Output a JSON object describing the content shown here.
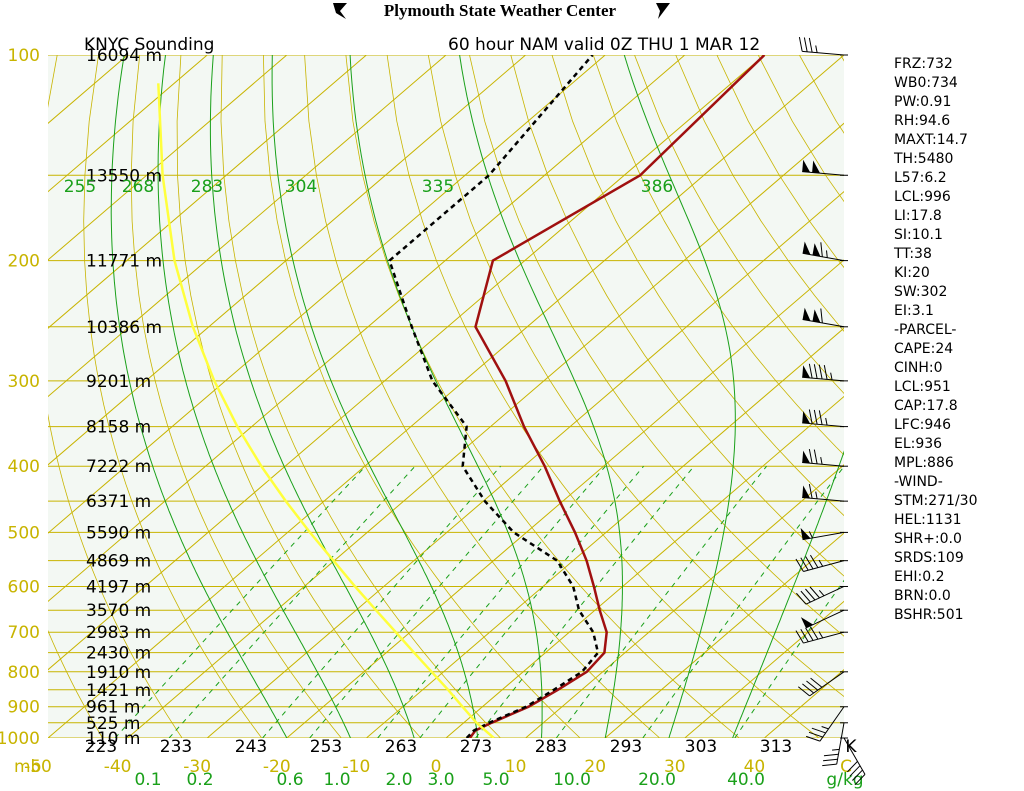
{
  "header": {
    "center_title": "Plymouth State Weather Center",
    "station_title": "KNYC Sounding",
    "run_title": "60 hour NAM valid 0Z THU 1 MAR 12"
  },
  "colors": {
    "plot_bg": "#f3f8f3",
    "isobar": "#c8b400",
    "isotherm": "#c8b400",
    "dry_adiabat": "#c8b400",
    "moist_adiabat": "#1aa01a",
    "mixing_ratio": "#1aa01a",
    "temperature": "#a01010",
    "dewpoint": "#000000",
    "parcel": "#ffff3c",
    "axis_text": "#c8b400",
    "green_text": "#1aa01a"
  },
  "chart_data": {
    "type": "line",
    "diagram": "skew-T log-P",
    "pressure_ticks_mb": [
      100,
      200,
      300,
      400,
      500,
      600,
      700,
      800,
      900,
      1000
    ],
    "pressure_unit_label": "mb",
    "pressure_range_mb": [
      100,
      1000
    ],
    "temperature_ticks_c": [
      -50,
      -40,
      -30,
      -20,
      -10,
      0,
      10,
      20,
      30,
      40
    ],
    "temperature_tick_labels": [
      "-50",
      "-40",
      "-30",
      "-20",
      "-10",
      "0",
      "10",
      "20",
      "30",
      "40",
      "C"
    ],
    "temperature_range_c_at_1000mb": [
      -50,
      50
    ],
    "kelvin_labels": [
      "223",
      "233",
      "243",
      "253",
      "263",
      "273",
      "283",
      "293",
      "303",
      "313",
      "K"
    ],
    "mixing_ratio_labels": [
      "0.1",
      "0.2",
      "0.6",
      "1.0",
      "2.0",
      "3.0",
      "5.0",
      "10.0",
      "20.0",
      "40.0",
      "g/kg"
    ],
    "mixing_ratio_values_gkg": [
      0.1,
      0.2,
      0.6,
      1.0,
      2.0,
      3.0,
      5.0,
      10.0,
      20.0,
      40.0
    ],
    "theta_e_labels": [
      "255",
      "268",
      "283",
      "304",
      "335",
      "386"
    ],
    "theta_e_values_k": [
      255,
      268,
      283,
      304,
      335,
      386
    ],
    "height_labels": [
      {
        "p": 100,
        "text": "16094 m"
      },
      {
        "p": 150,
        "text": "13550 m"
      },
      {
        "p": 200,
        "text": "11771 m"
      },
      {
        "p": 250,
        "text": "10386 m"
      },
      {
        "p": 300,
        "text": "9201 m"
      },
      {
        "p": 350,
        "text": "8158 m"
      },
      {
        "p": 400,
        "text": "7222 m"
      },
      {
        "p": 450,
        "text": "6371 m"
      },
      {
        "p": 500,
        "text": "5590 m"
      },
      {
        "p": 550,
        "text": "4869 m"
      },
      {
        "p": 600,
        "text": "4197 m"
      },
      {
        "p": 650,
        "text": "3570 m"
      },
      {
        "p": 700,
        "text": "2983 m"
      },
      {
        "p": 750,
        "text": "2430 m"
      },
      {
        "p": 800,
        "text": "1910 m"
      },
      {
        "p": 850,
        "text": "1421 m"
      },
      {
        "p": 900,
        "text": "961 m"
      },
      {
        "p": 950,
        "text": "525 m"
      },
      {
        "p": 1000,
        "text": "110 m"
      }
    ],
    "series": [
      {
        "key": "temperature",
        "color": "#a01010",
        "points": [
          {
            "p": 1000,
            "t": 3.0
          },
          {
            "p": 975,
            "t": 2.6
          },
          {
            "p": 950,
            "t": 3.5
          },
          {
            "p": 900,
            "t": 5.8
          },
          {
            "p": 850,
            "t": 7.0
          },
          {
            "p": 800,
            "t": 8.0
          },
          {
            "p": 750,
            "t": 7.4
          },
          {
            "p": 700,
            "t": 4.7
          },
          {
            "p": 650,
            "t": 0.6
          },
          {
            "p": 600,
            "t": -3.6
          },
          {
            "p": 550,
            "t": -8.3
          },
          {
            "p": 500,
            "t": -13.9
          },
          {
            "p": 450,
            "t": -20.4
          },
          {
            "p": 400,
            "t": -27.4
          },
          {
            "p": 350,
            "t": -35.8
          },
          {
            "p": 300,
            "t": -44.8
          },
          {
            "p": 250,
            "t": -56.5
          },
          {
            "p": 200,
            "t": -64.0
          },
          {
            "p": 150,
            "t": -58.0
          },
          {
            "p": 100,
            "t": -60.0
          }
        ]
      },
      {
        "key": "dewpoint",
        "color": "#000000",
        "points": [
          {
            "p": 1000,
            "t": 2.6
          },
          {
            "p": 975,
            "t": 2.4
          },
          {
            "p": 950,
            "t": 3.2
          },
          {
            "p": 900,
            "t": 5.5
          },
          {
            "p": 850,
            "t": 6.5
          },
          {
            "p": 800,
            "t": 7.4
          },
          {
            "p": 750,
            "t": 6.6
          },
          {
            "p": 700,
            "t": 3.0
          },
          {
            "p": 650,
            "t": -2.0
          },
          {
            "p": 600,
            "t": -6.2
          },
          {
            "p": 550,
            "t": -12.0
          },
          {
            "p": 500,
            "t": -21.6
          },
          {
            "p": 450,
            "t": -29.8
          },
          {
            "p": 400,
            "t": -37.7
          },
          {
            "p": 350,
            "t": -43.0
          },
          {
            "p": 300,
            "t": -54.0
          },
          {
            "p": 250,
            "t": -64.5
          },
          {
            "p": 200,
            "t": -77.0
          },
          {
            "p": 150,
            "t": -77.0
          },
          {
            "p": 100,
            "t": -81.6
          }
        ]
      },
      {
        "key": "parcel",
        "color": "#ffff3c",
        "points": [
          {
            "p": 1000,
            "t": 6.0
          },
          {
            "p": 950,
            "t": 1.6
          },
          {
            "p": 900,
            "t": -2.5
          },
          {
            "p": 850,
            "t": -6.8
          },
          {
            "p": 800,
            "t": -11.5
          },
          {
            "p": 750,
            "t": -16.5
          },
          {
            "p": 700,
            "t": -21.8
          },
          {
            "p": 650,
            "t": -27.5
          },
          {
            "p": 600,
            "t": -33.6
          },
          {
            "p": 550,
            "t": -40.1
          },
          {
            "p": 500,
            "t": -47.2
          },
          {
            "p": 450,
            "t": -54.8
          },
          {
            "p": 400,
            "t": -63.0
          },
          {
            "p": 350,
            "t": -71.8
          },
          {
            "p": 300,
            "t": -81.4
          },
          {
            "p": 250,
            "t": -92.0
          },
          {
            "p": 200,
            "t": -104.0
          },
          {
            "p": 150,
            "t": -118.0
          },
          {
            "p": 110,
            "t": -132.0
          }
        ]
      }
    ],
    "wind_barbs": [
      {
        "p": 100,
        "dir": 275,
        "kt": 35
      },
      {
        "p": 150,
        "dir": 275,
        "kt": 100
      },
      {
        "p": 200,
        "dir": 280,
        "kt": 115
      },
      {
        "p": 250,
        "dir": 280,
        "kt": 110
      },
      {
        "p": 300,
        "dir": 275,
        "kt": 95
      },
      {
        "p": 350,
        "dir": 275,
        "kt": 85
      },
      {
        "p": 400,
        "dir": 275,
        "kt": 75
      },
      {
        "p": 450,
        "dir": 275,
        "kt": 65
      },
      {
        "p": 500,
        "dir": 260,
        "kt": 55
      },
      {
        "p": 550,
        "dir": 255,
        "kt": 45
      },
      {
        "p": 600,
        "dir": 245,
        "kt": 45
      },
      {
        "p": 650,
        "dir": 245,
        "kt": 50
      },
      {
        "p": 700,
        "dir": 255,
        "kt": 45
      },
      {
        "p": 800,
        "dir": 235,
        "kt": 40
      },
      {
        "p": 900,
        "dir": 215,
        "kt": 35
      },
      {
        "p": 950,
        "dir": 190,
        "kt": 35
      },
      {
        "p": 1000,
        "dir": 150,
        "kt": 40
      }
    ]
  },
  "indices": [
    "FRZ:732",
    "WB0:734",
    "PW:0.91",
    "RH:94.6",
    "MAXT:14.7",
    "TH:5480",
    "L57:6.2",
    "LCL:996",
    "LI:17.8",
    "SI:10.1",
    "TT:38",
    "KI:20",
    "SW:302",
    "EI:3.1",
    "-PARCEL-",
    "CAPE:24",
    "CINH:0",
    "LCL:951",
    "CAP:17.8",
    "LFC:946",
    "EL:936",
    "MPL:886",
    "-WIND-",
    "STM:271/30",
    "HEL:1131",
    "SHR+:0.0",
    "SRDS:109",
    "EHI:0.2",
    "BRN:0.0",
    "BSHR:501"
  ]
}
